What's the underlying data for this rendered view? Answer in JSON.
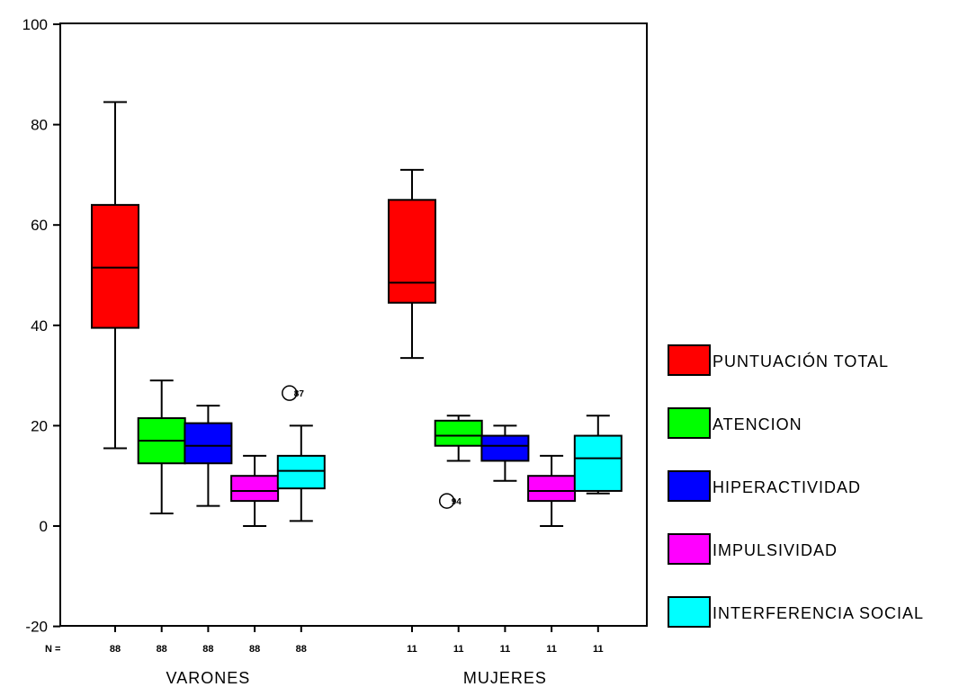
{
  "chart_data": {
    "type": "boxplot",
    "title": "",
    "xlabel": "",
    "ylabel": "",
    "ylim": [
      -20,
      100
    ],
    "yticks": [
      "100",
      "80",
      "60",
      "40",
      "20",
      "0",
      "-20"
    ],
    "grid": false,
    "legend_position": "right",
    "n_prefix": "N =",
    "groups": [
      "VARONES",
      "MUJERES"
    ],
    "series": [
      {
        "name": "PUNTUACIÓN TOTAL",
        "color": "#ff0000"
      },
      {
        "name": "ATENCION",
        "color": "#00ff00"
      },
      {
        "name": "HIPERACTIVIDAD",
        "color": "#0000ff"
      },
      {
        "name": "IMPULSIVIDAD",
        "color": "#ff00ff"
      },
      {
        "name": "INTERFERENCIA SOCIAL",
        "color": "#00ffff"
      }
    ],
    "boxes": [
      {
        "group": 0,
        "series": 0,
        "n": "88",
        "min": 15.5,
        "q1": 39.5,
        "median": 51.5,
        "q3": 64,
        "max": 84.5
      },
      {
        "group": 0,
        "series": 1,
        "n": "88",
        "min": 2.5,
        "q1": 12.5,
        "median": 17,
        "q3": 21.5,
        "max": 29
      },
      {
        "group": 0,
        "series": 2,
        "n": "88",
        "min": 4,
        "q1": 12.5,
        "median": 16,
        "q3": 20.5,
        "max": 24
      },
      {
        "group": 0,
        "series": 3,
        "n": "88",
        "min": 0,
        "q1": 5,
        "median": 7,
        "q3": 10,
        "max": 14
      },
      {
        "group": 0,
        "series": 4,
        "n": "88",
        "min": 1,
        "q1": 7.5,
        "median": 11,
        "q3": 14,
        "max": 20
      },
      {
        "group": 1,
        "series": 0,
        "n": "11",
        "min": 33.5,
        "q1": 44.5,
        "median": 48.5,
        "q3": 65,
        "max": 71
      },
      {
        "group": 1,
        "series": 1,
        "n": "11",
        "min": 13,
        "q1": 16,
        "median": 18,
        "q3": 21,
        "max": 22
      },
      {
        "group": 1,
        "series": 2,
        "n": "11",
        "min": 9,
        "q1": 13,
        "median": 16,
        "q3": 18,
        "max": 20
      },
      {
        "group": 1,
        "series": 3,
        "n": "11",
        "min": 0,
        "q1": 5,
        "median": 7,
        "q3": 10,
        "max": 14
      },
      {
        "group": 1,
        "series": 4,
        "n": "11",
        "min": 6.5,
        "q1": 7,
        "median": 13.5,
        "q3": 18,
        "max": 22
      }
    ],
    "outliers": [
      {
        "group": 0,
        "series": 4,
        "value": 26.5,
        "label": "87"
      },
      {
        "group": 1,
        "series": 1,
        "value": 5,
        "label": "94"
      }
    ]
  }
}
